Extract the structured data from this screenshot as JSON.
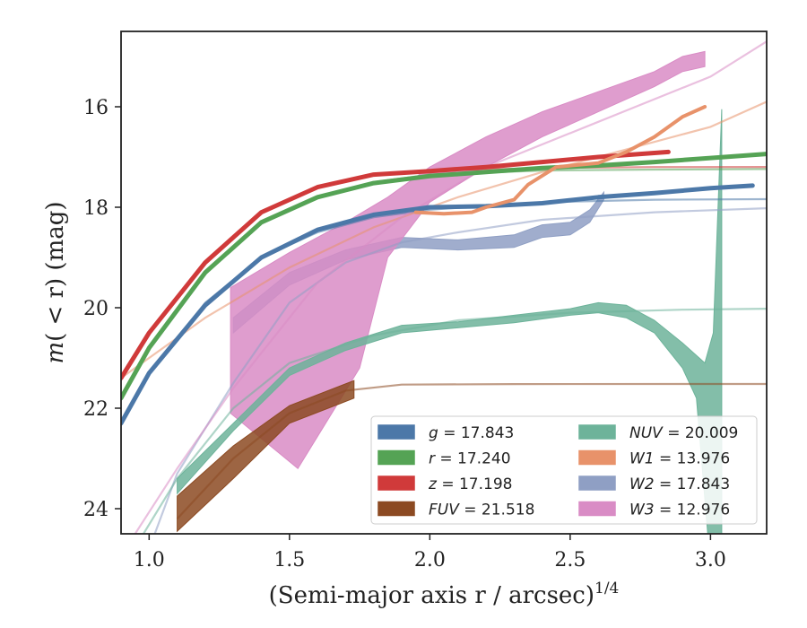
{
  "chart_data": {
    "type": "line",
    "xlabel": "(Semi-major axis r / arcsec)",
    "xlabel_exp": "1/4",
    "ylabel_pre": "m",
    "ylabel_mid": "( < r)",
    "ylabel_post": " (mag)",
    "xlim": [
      0.9,
      3.2
    ],
    "ylim": [
      24.5,
      14.5
    ],
    "y_inverted": true,
    "x_ticks": [
      1.0,
      1.5,
      2.0,
      2.5,
      3.0
    ],
    "x_tick_labels": [
      "1.0",
      "1.5",
      "2.0",
      "2.5",
      "3.0"
    ],
    "y_ticks": [
      16,
      18,
      20,
      22,
      24
    ],
    "y_tick_labels": [
      "16",
      "18",
      "20",
      "22",
      "24"
    ],
    "grid": false,
    "legend": {
      "placement": "lower-right",
      "columns": 2,
      "entries": [
        {
          "band": "g",
          "value": "17.843",
          "color": "#4c78a8",
          "italic": false
        },
        {
          "band": "r",
          "value": "17.240",
          "color": "#55a355",
          "italic": false
        },
        {
          "band": "z",
          "value": "17.198",
          "color": "#d03a3a",
          "italic": false
        },
        {
          "band": "FUV",
          "value": "21.518",
          "color": "#8c4a22",
          "italic": true
        },
        {
          "band": "NUV",
          "value": "20.009",
          "color": "#6db39a",
          "italic": true
        },
        {
          "band": "W1",
          "value": "13.976",
          "color": "#e8926a",
          "italic": true
        },
        {
          "band": "W2",
          "value": "17.843",
          "color": "#8f9fc4",
          "italic": true
        },
        {
          "band": "W3",
          "value": "12.976",
          "color": "#d98cc5",
          "italic": true
        }
      ]
    },
    "series": [
      {
        "band": "g",
        "color": "#4c78a8",
        "model": [
          [
            0.9,
            22.3
          ],
          [
            1.0,
            21.3
          ],
          [
            1.2,
            19.9
          ],
          [
            1.4,
            19.0
          ],
          [
            1.6,
            18.5
          ],
          [
            1.8,
            18.2
          ],
          [
            2.0,
            18.05
          ],
          [
            2.4,
            17.9
          ],
          [
            2.8,
            17.85
          ],
          [
            3.2,
            17.84
          ]
        ],
        "data": [
          [
            0.9,
            22.3
          ],
          [
            1.0,
            21.3
          ],
          [
            1.2,
            19.95
          ],
          [
            1.4,
            19.0
          ],
          [
            1.6,
            18.45
          ],
          [
            1.8,
            18.15
          ],
          [
            2.0,
            18.0
          ],
          [
            2.2,
            17.98
          ],
          [
            2.4,
            17.92
          ],
          [
            2.6,
            17.8
          ],
          [
            2.8,
            17.72
          ],
          [
            3.0,
            17.62
          ],
          [
            3.15,
            17.57
          ]
        ],
        "data_width": 5
      },
      {
        "band": "r",
        "color": "#55a355",
        "model": [
          [
            0.9,
            21.8
          ],
          [
            1.0,
            20.8
          ],
          [
            1.2,
            19.3
          ],
          [
            1.4,
            18.3
          ],
          [
            1.6,
            17.8
          ],
          [
            1.8,
            17.5
          ],
          [
            2.0,
            17.35
          ],
          [
            2.4,
            17.27
          ],
          [
            2.8,
            17.25
          ],
          [
            3.2,
            17.24
          ]
        ],
        "data": [
          [
            0.9,
            21.8
          ],
          [
            1.0,
            20.8
          ],
          [
            1.2,
            19.3
          ],
          [
            1.4,
            18.3
          ],
          [
            1.6,
            17.8
          ],
          [
            1.8,
            17.52
          ],
          [
            2.0,
            17.38
          ],
          [
            2.2,
            17.3
          ],
          [
            2.4,
            17.22
          ],
          [
            2.6,
            17.17
          ],
          [
            2.8,
            17.1
          ],
          [
            3.0,
            17.02
          ],
          [
            3.2,
            16.94
          ]
        ],
        "data_width": 5
      },
      {
        "band": "z",
        "color": "#d03a3a",
        "model": [
          [
            0.9,
            21.4
          ],
          [
            1.0,
            20.5
          ],
          [
            1.2,
            19.1
          ],
          [
            1.4,
            18.1
          ],
          [
            1.6,
            17.6
          ],
          [
            1.8,
            17.35
          ],
          [
            2.0,
            17.27
          ],
          [
            2.4,
            17.22
          ],
          [
            2.8,
            17.2
          ],
          [
            3.2,
            17.198
          ]
        ],
        "data": [
          [
            0.9,
            21.4
          ],
          [
            1.0,
            20.5
          ],
          [
            1.2,
            19.1
          ],
          [
            1.4,
            18.1
          ],
          [
            1.6,
            17.6
          ],
          [
            1.8,
            17.35
          ],
          [
            2.0,
            17.28
          ],
          [
            2.2,
            17.2
          ],
          [
            2.4,
            17.1
          ],
          [
            2.6,
            17.0
          ],
          [
            2.85,
            16.9
          ]
        ],
        "data_width": 5
      },
      {
        "band": "W1",
        "color": "#e8926a",
        "model": [
          [
            0.9,
            21.4
          ],
          [
            1.2,
            20.2
          ],
          [
            1.5,
            19.2
          ],
          [
            1.8,
            18.4
          ],
          [
            2.1,
            17.8
          ],
          [
            2.4,
            17.3
          ],
          [
            2.7,
            16.85
          ],
          [
            3.0,
            16.4
          ],
          [
            3.2,
            15.9
          ]
        ],
        "data": [
          [
            1.95,
            18.1
          ],
          [
            2.05,
            18.13
          ],
          [
            2.15,
            18.1
          ],
          [
            2.2,
            18.0
          ],
          [
            2.3,
            17.85
          ],
          [
            2.35,
            17.55
          ],
          [
            2.45,
            17.2
          ],
          [
            2.6,
            17.12
          ],
          [
            2.7,
            16.9
          ],
          [
            2.8,
            16.6
          ],
          [
            2.9,
            16.2
          ],
          [
            2.98,
            16.0
          ]
        ],
        "data_width": 4
      },
      {
        "band": "W2",
        "color": "#8f9fc4",
        "model": [
          [
            1.02,
            24.5
          ],
          [
            1.1,
            23.3
          ],
          [
            1.3,
            21.5
          ],
          [
            1.5,
            19.9
          ],
          [
            1.7,
            19.1
          ],
          [
            1.9,
            18.7
          ],
          [
            2.1,
            18.5
          ],
          [
            2.4,
            18.25
          ],
          [
            2.8,
            18.1
          ],
          [
            3.2,
            18.02
          ]
        ],
        "band_upper": [
          [
            1.3,
            20.2
          ],
          [
            1.5,
            19.3
          ],
          [
            1.7,
            18.85
          ],
          [
            1.9,
            18.6
          ],
          [
            2.1,
            18.65
          ],
          [
            2.3,
            18.55
          ],
          [
            2.4,
            18.35
          ],
          [
            2.5,
            18.3
          ],
          [
            2.57,
            18.05
          ],
          [
            2.62,
            17.7
          ]
        ],
        "band_lower": [
          [
            1.3,
            20.5
          ],
          [
            1.5,
            19.55
          ],
          [
            1.7,
            19.05
          ],
          [
            1.9,
            18.8
          ],
          [
            2.1,
            18.85
          ],
          [
            2.3,
            18.8
          ],
          [
            2.4,
            18.6
          ],
          [
            2.5,
            18.55
          ],
          [
            2.57,
            18.3
          ],
          [
            2.62,
            17.85
          ]
        ]
      },
      {
        "band": "W3",
        "color": "#d98cc5",
        "model": [
          [
            0.95,
            24.5
          ],
          [
            1.1,
            23.2
          ],
          [
            1.3,
            21.6
          ],
          [
            1.6,
            19.5
          ],
          [
            1.9,
            18.2
          ],
          [
            2.2,
            17.2
          ],
          [
            2.6,
            16.3
          ],
          [
            3.0,
            15.4
          ],
          [
            3.2,
            14.7
          ]
        ],
        "band_upper": [
          [
            1.29,
            19.6
          ],
          [
            1.5,
            18.9
          ],
          [
            1.7,
            18.3
          ],
          [
            1.85,
            17.8
          ],
          [
            2.0,
            17.2
          ],
          [
            2.2,
            16.6
          ],
          [
            2.4,
            16.1
          ],
          [
            2.6,
            15.7
          ],
          [
            2.8,
            15.3
          ],
          [
            2.9,
            15.0
          ],
          [
            2.98,
            14.9
          ]
        ],
        "band_lower": [
          [
            1.29,
            22.1
          ],
          [
            1.53,
            23.2
          ],
          [
            1.75,
            21.2
          ],
          [
            1.85,
            19.0
          ],
          [
            2.0,
            17.9
          ],
          [
            2.2,
            17.2
          ],
          [
            2.4,
            16.6
          ],
          [
            2.6,
            16.1
          ],
          [
            2.8,
            15.6
          ],
          [
            2.9,
            15.3
          ],
          [
            2.98,
            15.2
          ]
        ]
      },
      {
        "band": "NUV",
        "color": "#6db39a",
        "model": [
          [
            0.98,
            24.5
          ],
          [
            1.1,
            23.4
          ],
          [
            1.3,
            22.0
          ],
          [
            1.5,
            21.1
          ],
          [
            1.8,
            20.55
          ],
          [
            2.1,
            20.25
          ],
          [
            2.5,
            20.1
          ],
          [
            2.9,
            20.04
          ],
          [
            3.2,
            20.02
          ]
        ],
        "band_upper": [
          [
            1.1,
            23.4
          ],
          [
            1.3,
            22.3
          ],
          [
            1.5,
            21.2
          ],
          [
            1.7,
            20.7
          ],
          [
            1.9,
            20.35
          ],
          [
            2.1,
            20.28
          ],
          [
            2.3,
            20.15
          ],
          [
            2.5,
            20.02
          ],
          [
            2.6,
            19.9
          ],
          [
            2.7,
            19.95
          ],
          [
            2.8,
            20.25
          ],
          [
            2.9,
            20.7
          ],
          [
            2.98,
            21.1
          ],
          [
            3.01,
            20.5
          ],
          [
            3.04,
            16.05
          ]
        ],
        "band_lower": [
          [
            1.1,
            23.7
          ],
          [
            1.3,
            22.45
          ],
          [
            1.5,
            21.35
          ],
          [
            1.7,
            20.85
          ],
          [
            1.9,
            20.5
          ],
          [
            2.1,
            20.4
          ],
          [
            2.3,
            20.3
          ],
          [
            2.5,
            20.15
          ],
          [
            2.6,
            20.1
          ],
          [
            2.7,
            20.2
          ],
          [
            2.8,
            20.5
          ],
          [
            2.9,
            21.2
          ],
          [
            2.95,
            21.8
          ],
          [
            2.99,
            24.5
          ],
          [
            3.04,
            24.5
          ],
          [
            3.04,
            16.1
          ]
        ]
      },
      {
        "band": "FUV",
        "color": "#8c4a22",
        "model": [
          [
            1.1,
            24.2
          ],
          [
            1.3,
            23.0
          ],
          [
            1.5,
            22.1
          ],
          [
            1.7,
            21.65
          ],
          [
            1.9,
            21.53
          ],
          [
            2.3,
            21.52
          ],
          [
            3.2,
            21.518
          ]
        ],
        "band_upper": [
          [
            1.1,
            23.75
          ],
          [
            1.3,
            22.75
          ],
          [
            1.5,
            21.95
          ],
          [
            1.73,
            21.45
          ]
        ],
        "band_lower": [
          [
            1.1,
            24.45
          ],
          [
            1.3,
            23.4
          ],
          [
            1.5,
            22.3
          ],
          [
            1.73,
            21.8
          ]
        ]
      }
    ]
  }
}
